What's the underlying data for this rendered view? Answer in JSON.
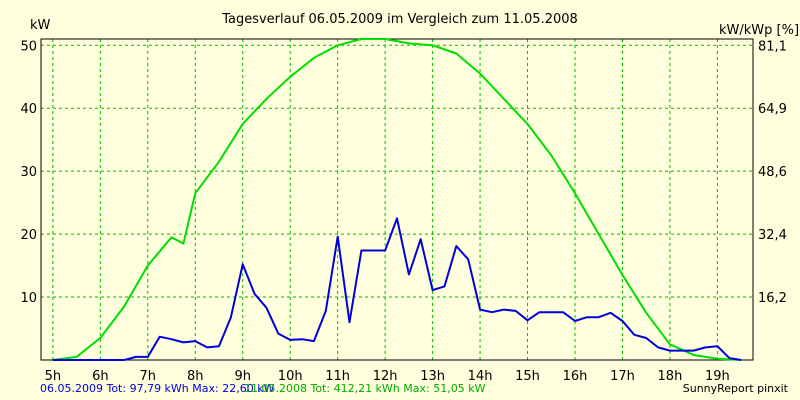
{
  "chart_data": {
    "type": "line",
    "title": "Tagesverlauf 06.05.2009 im Vergleich zum 11.05.2008",
    "ylabel": "kW",
    "y2label": "kW/kWp [%]",
    "x_ticks": [
      "5h",
      "6h",
      "7h",
      "8h",
      "9h",
      "10h",
      "11h",
      "12h",
      "13h",
      "14h",
      "15h",
      "16h",
      "17h",
      "18h",
      "19h"
    ],
    "x_tick_values": [
      5,
      6,
      7,
      8,
      9,
      10,
      11,
      12,
      13,
      14,
      15,
      16,
      17,
      18,
      19
    ],
    "xlim": [
      4.75,
      19.75
    ],
    "ylim": [
      0,
      51
    ],
    "y_ticks": [
      10,
      20,
      30,
      40,
      50
    ],
    "y2_ticks": [
      "16,2",
      "32,4",
      "48,6",
      "64,9",
      "81,1"
    ],
    "grid": true,
    "series": [
      {
        "name": "06.05.2009",
        "color": "#0000dd",
        "x": [
          5.0,
          5.5,
          6.0,
          6.5,
          6.75,
          7.0,
          7.25,
          7.5,
          7.75,
          8.0,
          8.25,
          8.5,
          8.75,
          9.0,
          9.25,
          9.5,
          9.75,
          10.0,
          10.25,
          10.5,
          10.75,
          11.0,
          11.25,
          11.5,
          11.75,
          12.0,
          12.25,
          12.5,
          12.75,
          13.0,
          13.25,
          13.5,
          13.75,
          14.0,
          14.25,
          14.5,
          14.75,
          15.0,
          15.25,
          15.5,
          15.75,
          16.0,
          16.25,
          16.5,
          16.75,
          17.0,
          17.25,
          17.5,
          17.75,
          18.0,
          18.25,
          18.5,
          18.75,
          19.0,
          19.25,
          19.5
        ],
        "values": [
          0,
          0,
          0,
          0,
          0.5,
          0.5,
          3.7,
          3.3,
          2.8,
          3.0,
          2.0,
          2.2,
          6.8,
          15.2,
          10.5,
          8.3,
          4.2,
          3.2,
          3.3,
          3.0,
          7.8,
          19.6,
          6.0,
          17.4,
          17.4,
          17.4,
          22.5,
          13.6,
          19.2,
          11.1,
          11.7,
          18.1,
          16.0,
          8.0,
          7.6,
          8.0,
          7.8,
          6.3,
          7.6,
          7.6,
          7.6,
          6.2,
          6.8,
          6.8,
          7.5,
          6.2,
          4.0,
          3.5,
          2.0,
          1.5,
          1.5,
          1.5,
          2.0,
          2.2,
          0.3,
          0
        ],
        "total": "06.05.2009 Tot: 97,79 kWh Max: 22,60 kW"
      },
      {
        "name": "11.05.2008",
        "color": "#00dd00",
        "x": [
          5.0,
          5.5,
          6.0,
          6.5,
          7.0,
          7.5,
          7.75,
          8.0,
          8.5,
          9.0,
          9.5,
          10.0,
          10.5,
          11.0,
          11.5,
          12.0,
          12.5,
          13.0,
          13.5,
          14.0,
          14.5,
          15.0,
          15.5,
          16.0,
          16.5,
          17.0,
          17.5,
          18.0,
          18.5,
          19.0,
          19.5
        ],
        "values": [
          0,
          0.5,
          3.5,
          8.5,
          15.0,
          19.5,
          18.5,
          26.5,
          31.5,
          37.5,
          41.5,
          45.0,
          48.0,
          50.0,
          51.0,
          51.0,
          50.3,
          50.0,
          48.7,
          45.5,
          41.5,
          37.5,
          32.5,
          26.5,
          20.0,
          13.5,
          7.5,
          2.5,
          0.8,
          0.2,
          0
        ],
        "total": "11.05.2008 Tot: 412,21 kWh Max: 51,05 kW"
      }
    ],
    "credit": "SunnyReport pinxit"
  },
  "colors": {
    "background": "#ffffdd",
    "grid": "#00bb00",
    "axis": "#000000"
  }
}
